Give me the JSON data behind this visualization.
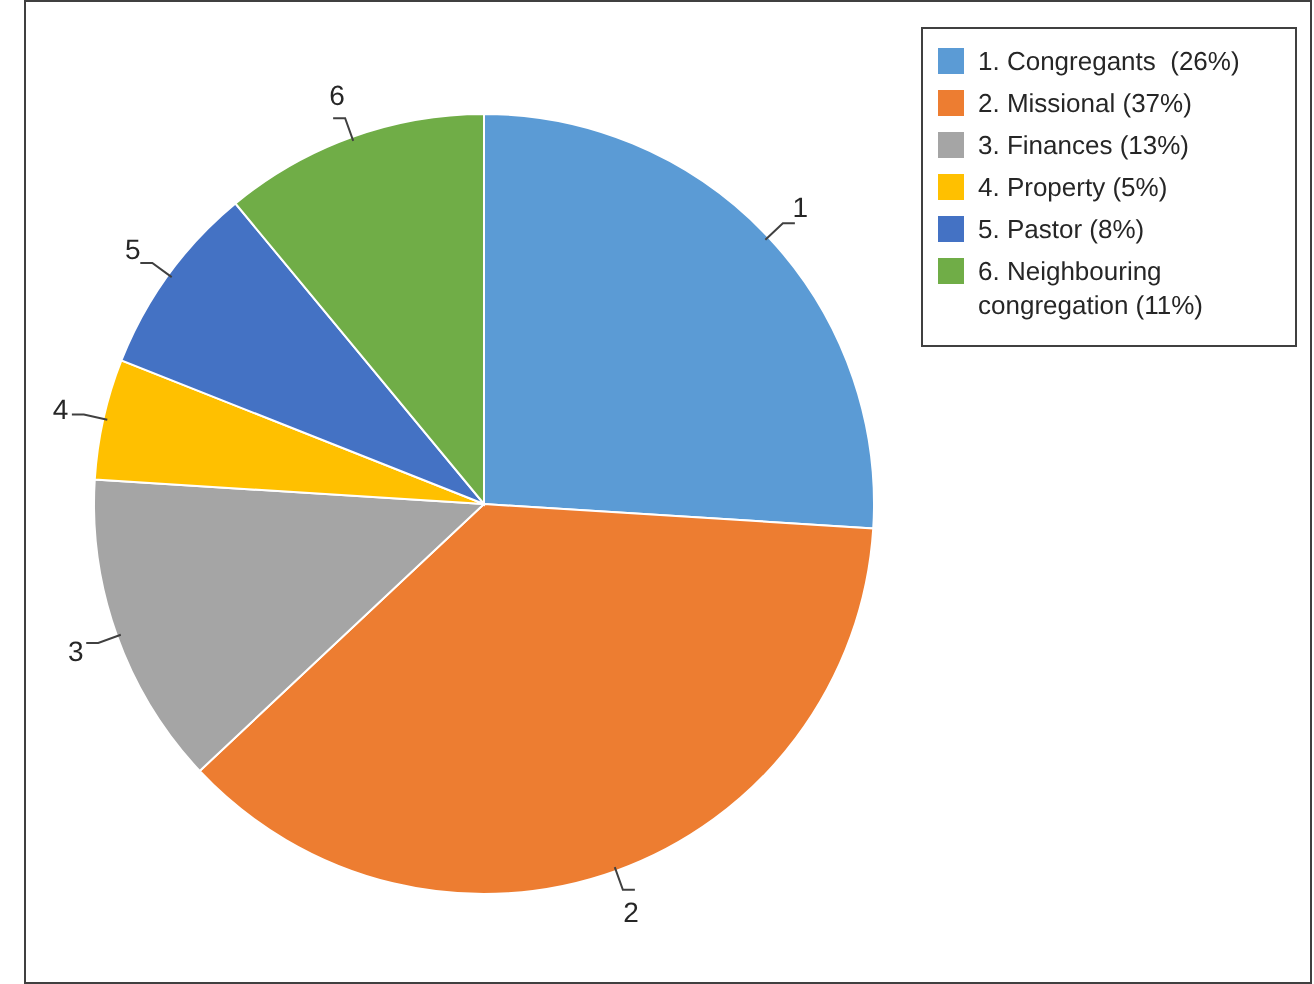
{
  "chart_data": {
    "type": "pie",
    "categories": [
      "1. Congregants  (26%)",
      "2. Missional (37%)",
      "3. Finances (13%)",
      "4. Property (5%)",
      "5. Pastor (8%)",
      "6. Neighbouring congregation (11%)"
    ],
    "values": [
      26,
      37,
      13,
      5,
      8,
      11
    ],
    "colors": [
      "#5b9bd5",
      "#ed7d31",
      "#a5a5a5",
      "#ffc000",
      "#4472c4",
      "#70ad47"
    ],
    "annotations": [
      "1",
      "2",
      "3",
      "4",
      "5",
      "6"
    ],
    "legend": "top right"
  }
}
